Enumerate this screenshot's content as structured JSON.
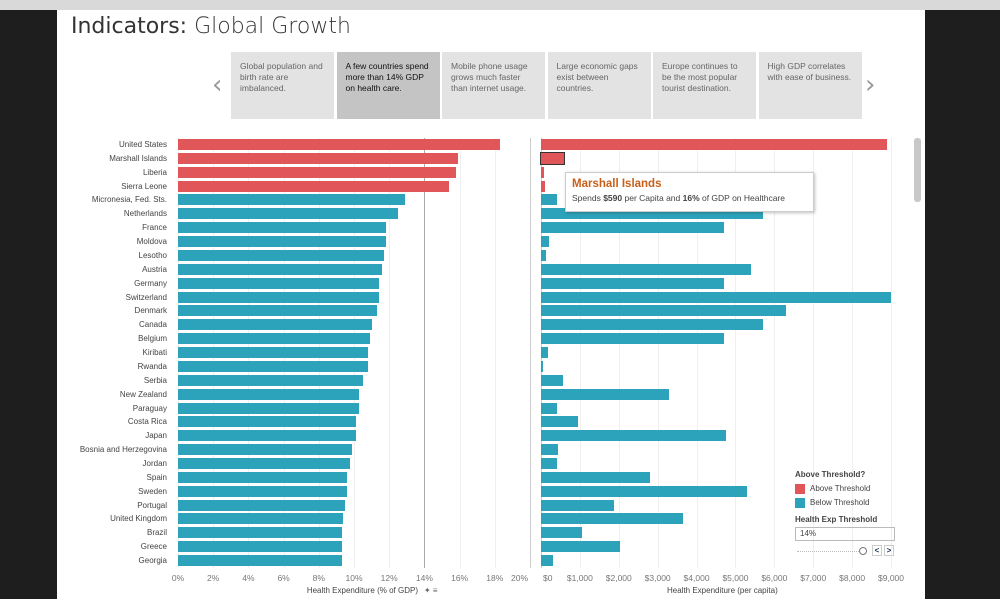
{
  "title_bold": "Indicators:",
  "title_rest": " Global Growth",
  "story_points": [
    {
      "text": "Global population and birth rate are imbalanced.",
      "active": false
    },
    {
      "text": "A few countries spend more than 14% GDP on health care.",
      "active": true
    },
    {
      "text": "Mobile phone usage grows much faster than internet usage.",
      "active": false
    },
    {
      "text": "Large economic gaps exist between countries.",
      "active": false
    },
    {
      "text": "Europe continues to be the most popular tourist destination.",
      "active": false
    },
    {
      "text": "High GDP correlates with ease of business.",
      "active": false
    }
  ],
  "nav": {
    "prev": "‹",
    "next": "›"
  },
  "tooltip": {
    "country": "Marshall Islands",
    "pre": "Spends ",
    "amount": "$590",
    "mid": " per Capita and ",
    "pct": "16%",
    "post": " of GDP on Healthcare"
  },
  "legend": {
    "title": "Above Threshold?",
    "items": [
      {
        "label": "Above Threshold",
        "color": "#e15759"
      },
      {
        "label": "Below Threshold",
        "color": "#2ca3ba"
      }
    ]
  },
  "threshold": {
    "label": "Health Exp Threshold",
    "value": "14%",
    "slider_fraction": 0.7
  },
  "chart_data": [
    {
      "type": "bar",
      "orientation": "horizontal",
      "xlabel": "Health Expenditure (% of GDP)",
      "xlim": [
        0,
        20
      ],
      "ticks": [
        "0%",
        "2%",
        "4%",
        "6%",
        "8%",
        "10%",
        "12%",
        "14%",
        "16%",
        "18%",
        "20%"
      ],
      "reference_line": 14,
      "categories": [
        "United States",
        "Marshall Islands",
        "Liberia",
        "Sierra Leone",
        "Micronesia, Fed. Sts.",
        "Netherlands",
        "France",
        "Moldova",
        "Lesotho",
        "Austria",
        "Germany",
        "Switzerland",
        "Denmark",
        "Canada",
        "Belgium",
        "Kiribati",
        "Rwanda",
        "Serbia",
        "New Zealand",
        "Paraguay",
        "Costa Rica",
        "Japan",
        "Bosnia and Herzegovina",
        "Jordan",
        "Spain",
        "Sweden",
        "Portugal",
        "United Kingdom",
        "Brazil",
        "Greece",
        "Georgia"
      ],
      "values": [
        18.3,
        15.9,
        15.8,
        15.4,
        12.9,
        12.5,
        11.8,
        11.8,
        11.7,
        11.6,
        11.4,
        11.4,
        11.3,
        11.0,
        10.9,
        10.8,
        10.8,
        10.5,
        10.3,
        10.3,
        10.1,
        10.1,
        9.9,
        9.8,
        9.6,
        9.6,
        9.5,
        9.4,
        9.3,
        9.3,
        9.3
      ]
    },
    {
      "type": "bar",
      "orientation": "horizontal",
      "xlabel": "Health Expenditure (per capita)",
      "xlim": [
        0,
        9000
      ],
      "ticks": [
        "$0",
        "$1,000",
        "$2,000",
        "$3,000",
        "$4,000",
        "$5,000",
        "$6,000",
        "$7,000",
        "$8,000",
        "$9,000"
      ],
      "values": [
        8900,
        590,
        80,
        90,
        400,
        5700,
        4700,
        200,
        130,
        5400,
        4700,
        9000,
        6300,
        5700,
        4700,
        180,
        60,
        560,
        3300,
        400,
        950,
        4750,
        440,
        400,
        2800,
        5300,
        1880,
        3650,
        1060,
        2040,
        310
      ]
    }
  ]
}
